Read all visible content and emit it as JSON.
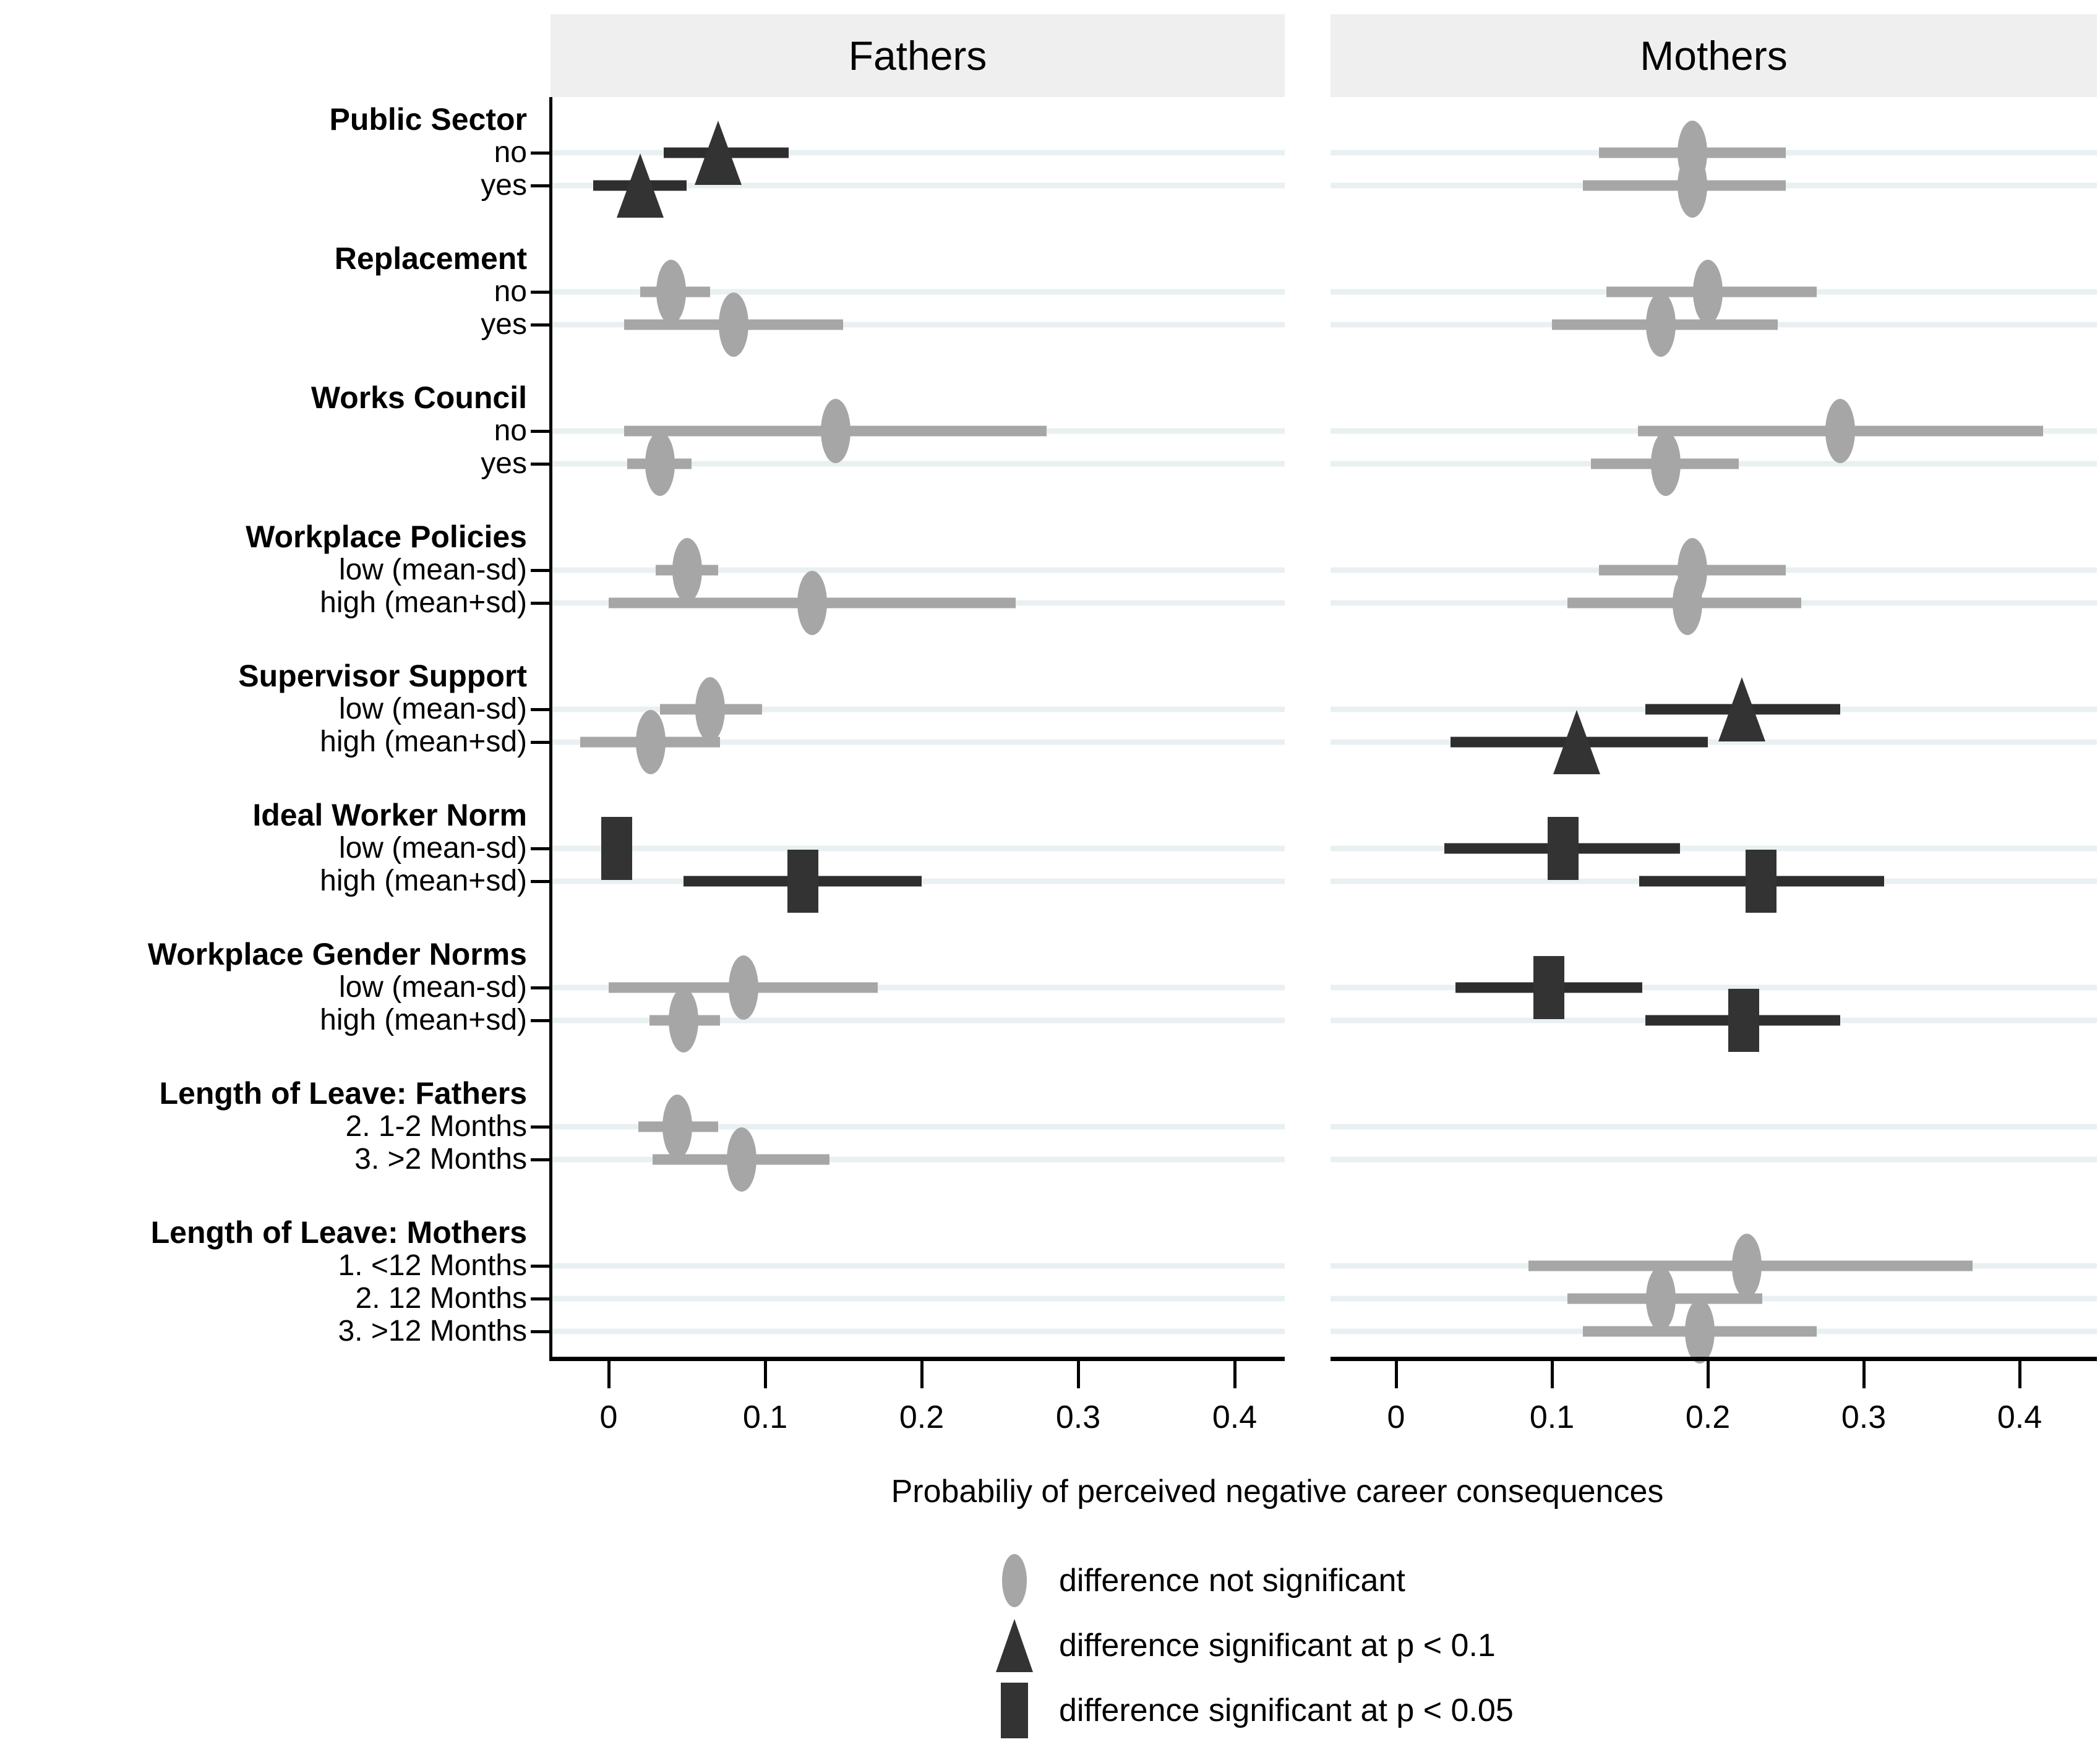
{
  "chart_data": {
    "type": "scatter",
    "subtype": "coefficient-forest-plot-with-confidence-intervals",
    "title": "",
    "panel_titles": [
      "Fathers",
      "Mothers"
    ],
    "xlabel": "Probabiliy of perceived negative career consequences",
    "xticks": [
      0,
      0.1,
      0.2,
      0.3,
      0.4
    ],
    "xtick_labels": [
      "0",
      "0.1",
      "0.2",
      "0.3",
      "0.4"
    ],
    "xlim": [
      -0.04,
      0.45
    ],
    "grid": true,
    "legend_position": "bottom",
    "legend": [
      {
        "marker": "circle",
        "color": "#a6a6a6",
        "label": "difference not significant"
      },
      {
        "marker": "triangle",
        "color": "#333333",
        "label": "difference significant at p < 0.1"
      },
      {
        "marker": "square",
        "color": "#333333",
        "label": "difference significant at p < 0.05"
      }
    ],
    "sig_marker_map": {
      "ns": "circle",
      "p<0.1": "triangle",
      "p<0.05": "square"
    },
    "groups": [
      {
        "label": "Public Sector",
        "rows": [
          {
            "label": "no",
            "fathers": {
              "est": 0.07,
              "ci": [
                0.035,
                0.115
              ],
              "sig": "p<0.1"
            },
            "mothers": {
              "est": 0.19,
              "ci": [
                0.13,
                0.25
              ],
              "sig": "ns"
            }
          },
          {
            "label": "yes",
            "fathers": {
              "est": 0.02,
              "ci": [
                -0.01,
                0.05
              ],
              "sig": "p<0.1"
            },
            "mothers": {
              "est": 0.19,
              "ci": [
                0.12,
                0.25
              ],
              "sig": "ns"
            }
          }
        ]
      },
      {
        "label": "Replacement",
        "rows": [
          {
            "label": "no",
            "fathers": {
              "est": 0.04,
              "ci": [
                0.02,
                0.065
              ],
              "sig": "ns"
            },
            "mothers": {
              "est": 0.2,
              "ci": [
                0.135,
                0.27
              ],
              "sig": "ns"
            }
          },
          {
            "label": "yes",
            "fathers": {
              "est": 0.08,
              "ci": [
                0.01,
                0.15
              ],
              "sig": "ns"
            },
            "mothers": {
              "est": 0.17,
              "ci": [
                0.1,
                0.245
              ],
              "sig": "ns"
            }
          }
        ]
      },
      {
        "label": "Works Council",
        "rows": [
          {
            "label": "no",
            "fathers": {
              "est": 0.145,
              "ci": [
                0.01,
                0.28
              ],
              "sig": "ns"
            },
            "mothers": {
              "est": 0.285,
              "ci": [
                0.155,
                0.415
              ],
              "sig": "ns"
            }
          },
          {
            "label": "yes",
            "fathers": {
              "est": 0.033,
              "ci": [
                0.012,
                0.053
              ],
              "sig": "ns"
            },
            "mothers": {
              "est": 0.173,
              "ci": [
                0.125,
                0.22
              ],
              "sig": "ns"
            }
          }
        ]
      },
      {
        "label": "Workplace Policies",
        "rows": [
          {
            "label": "low (mean-sd)",
            "fathers": {
              "est": 0.05,
              "ci": [
                0.03,
                0.07
              ],
              "sig": "ns"
            },
            "mothers": {
              "est": 0.19,
              "ci": [
                0.13,
                0.25
              ],
              "sig": "ns"
            }
          },
          {
            "label": "high (mean+sd)",
            "fathers": {
              "est": 0.13,
              "ci": [
                0.0,
                0.26
              ],
              "sig": "ns"
            },
            "mothers": {
              "est": 0.187,
              "ci": [
                0.11,
                0.26
              ],
              "sig": "ns"
            }
          }
        ]
      },
      {
        "label": "Supervisor Support",
        "rows": [
          {
            "label": "low (mean-sd)",
            "fathers": {
              "est": 0.065,
              "ci": [
                0.033,
                0.098
              ],
              "sig": "ns"
            },
            "mothers": {
              "est": 0.222,
              "ci": [
                0.16,
                0.285
              ],
              "sig": "p<0.1"
            }
          },
          {
            "label": "high (mean+sd)",
            "fathers": {
              "est": 0.027,
              "ci": [
                -0.018,
                0.071
              ],
              "sig": "ns"
            },
            "mothers": {
              "est": 0.116,
              "ci": [
                0.035,
                0.2
              ],
              "sig": "p<0.1"
            }
          }
        ]
      },
      {
        "label": "Ideal Worker Norm",
        "rows": [
          {
            "label": "low (mean-sd)",
            "fathers": {
              "est": 0.005,
              "ci": [
                -0.004,
                0.014
              ],
              "sig": "p<0.05"
            },
            "mothers": {
              "est": 0.107,
              "ci": [
                0.031,
                0.182
              ],
              "sig": "p<0.05"
            }
          },
          {
            "label": "high (mean+sd)",
            "fathers": {
              "est": 0.124,
              "ci": [
                0.048,
                0.2
              ],
              "sig": "p<0.05"
            },
            "mothers": {
              "est": 0.234,
              "ci": [
                0.156,
                0.313
              ],
              "sig": "p<0.05"
            }
          }
        ]
      },
      {
        "label": "Workplace Gender Norms",
        "rows": [
          {
            "label": "low (mean-sd)",
            "fathers": {
              "est": 0.086,
              "ci": [
                0.0,
                0.172
              ],
              "sig": "ns"
            },
            "mothers": {
              "est": 0.098,
              "ci": [
                0.038,
                0.158
              ],
              "sig": "p<0.05"
            }
          },
          {
            "label": "high (mean+sd)",
            "fathers": {
              "est": 0.048,
              "ci": [
                0.026,
                0.071
              ],
              "sig": "ns"
            },
            "mothers": {
              "est": 0.223,
              "ci": [
                0.16,
                0.285
              ],
              "sig": "p<0.05"
            }
          }
        ]
      },
      {
        "label": "Length of Leave: Fathers",
        "rows": [
          {
            "label": "2. 1-2 Months",
            "fathers": {
              "est": 0.044,
              "ci": [
                0.019,
                0.07
              ],
              "sig": "ns"
            },
            "mothers": null
          },
          {
            "label": "3. >2 Months",
            "fathers": {
              "est": 0.085,
              "ci": [
                0.028,
                0.141
              ],
              "sig": "ns"
            },
            "mothers": null
          }
        ]
      },
      {
        "label": "Length of Leave: Mothers",
        "rows": [
          {
            "label": "1. <12 Months",
            "fathers": null,
            "mothers": {
              "est": 0.225,
              "ci": [
                0.085,
                0.37
              ],
              "sig": "ns"
            }
          },
          {
            "label": "2. 12 Months",
            "fathers": null,
            "mothers": {
              "est": 0.17,
              "ci": [
                0.11,
                0.235
              ],
              "sig": "ns"
            }
          },
          {
            "label": "3. >12 Months",
            "fathers": null,
            "mothers": {
              "est": 0.195,
              "ci": [
                0.12,
                0.27
              ],
              "sig": "ns"
            }
          }
        ]
      }
    ]
  },
  "colors": {
    "not_significant": "#a6a6a6",
    "significant": "#333333",
    "significant_ci": "#2e2e2e",
    "gridline": "#e9f0f2",
    "header_band": "#efefef",
    "axis": "#000000",
    "background": "#ffffff"
  }
}
